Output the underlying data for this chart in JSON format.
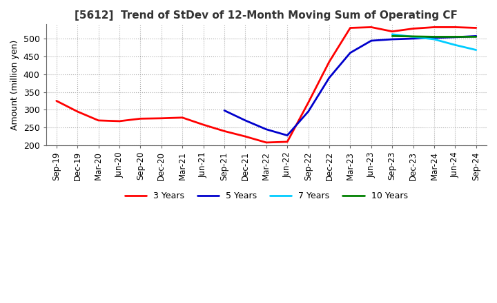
{
  "title": "[5612]  Trend of StDev of 12-Month Moving Sum of Operating CF",
  "ylabel": "Amount (million yen)",
  "ylim": [
    200,
    540
  ],
  "yticks": [
    200,
    250,
    300,
    350,
    400,
    450,
    500
  ],
  "background_color": "#ffffff",
  "grid_color": "#aaaaaa",
  "lines": {
    "3 Years": {
      "color": "#ff0000",
      "data": {
        "Sep-19": 325,
        "Dec-19": 295,
        "Mar-20": 270,
        "Jun-20": 268,
        "Sep-20": 275,
        "Dec-20": 276,
        "Mar-21": 278,
        "Jun-21": 258,
        "Sep-21": 240,
        "Dec-21": 225,
        "Mar-22": 208,
        "Jun-22": 210,
        "Sep-22": 320,
        "Dec-22": 435,
        "Mar-23": 530,
        "Jun-23": 532,
        "Sep-23": 520,
        "Dec-23": 528,
        "Mar-24": 532,
        "Jun-24": 532,
        "Sep-24": 530
      }
    },
    "5 Years": {
      "color": "#0000cc",
      "data": {
        "Sep-21": 298,
        "Dec-21": 270,
        "Mar-22": 245,
        "Jun-22": 228,
        "Sep-22": 295,
        "Dec-22": 390,
        "Mar-23": 460,
        "Jun-23": 494,
        "Sep-23": 498,
        "Dec-23": 500,
        "Mar-24": 502,
        "Jun-24": 504,
        "Sep-24": 507
      }
    },
    "7 Years": {
      "color": "#00ccff",
      "data": {
        "Sep-23": 512,
        "Dec-23": 505,
        "Mar-24": 498,
        "Jun-24": 482,
        "Sep-24": 468
      }
    },
    "10 Years": {
      "color": "#008000",
      "data": {
        "Sep-23": 507,
        "Dec-23": 506,
        "Mar-24": 505,
        "Jun-24": 505,
        "Sep-24": 505
      }
    }
  },
  "all_dates": [
    "Sep-19",
    "Dec-19",
    "Mar-20",
    "Jun-20",
    "Sep-20",
    "Dec-20",
    "Mar-21",
    "Jun-21",
    "Sep-21",
    "Dec-21",
    "Mar-22",
    "Jun-22",
    "Sep-22",
    "Dec-22",
    "Mar-23",
    "Jun-23",
    "Sep-23",
    "Dec-23",
    "Mar-24",
    "Jun-24",
    "Sep-24"
  ]
}
